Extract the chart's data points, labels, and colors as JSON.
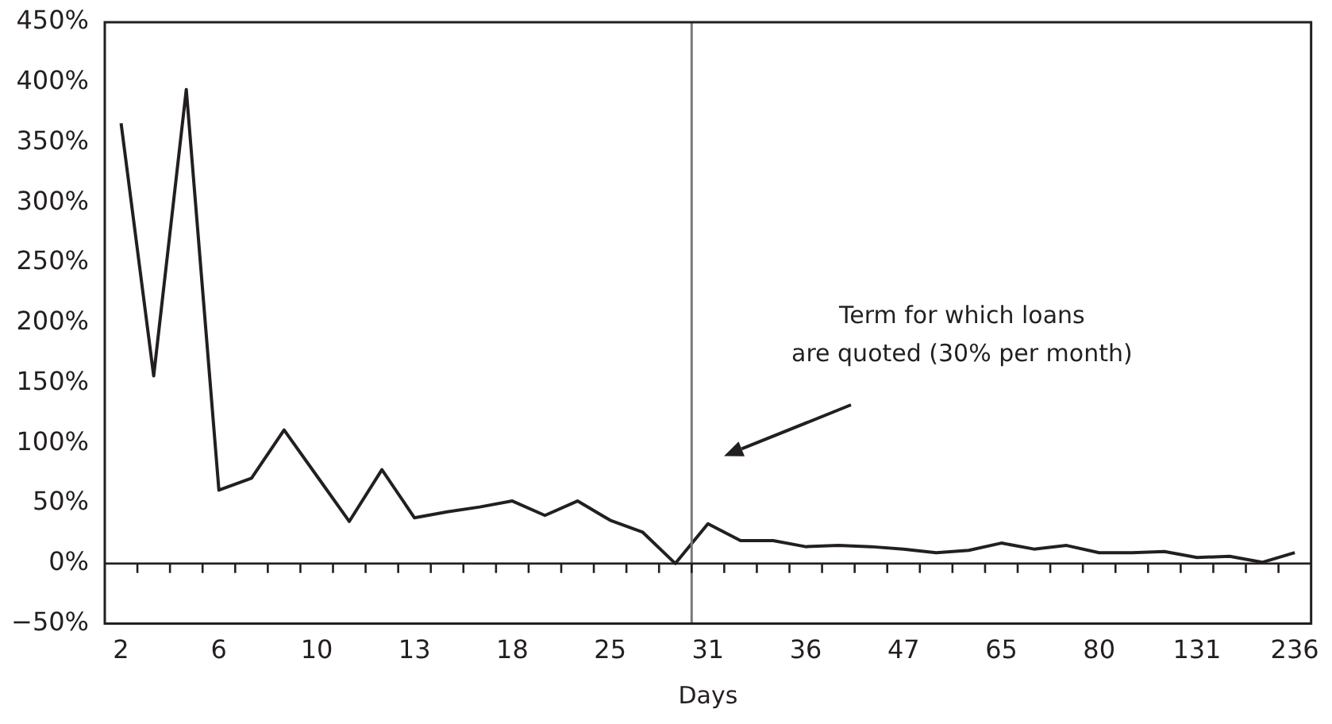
{
  "chart_data": {
    "type": "line",
    "xlabel": "Days",
    "categories": [
      "2",
      null,
      null,
      "6",
      null,
      null,
      "10",
      null,
      null,
      "13",
      null,
      null,
      "18",
      null,
      null,
      "25",
      null,
      null,
      "31",
      null,
      null,
      "36",
      null,
      null,
      "47",
      null,
      null,
      "65",
      null,
      null,
      "80",
      null,
      null,
      "131",
      null,
      null,
      "236"
    ],
    "series": [
      {
        "color": "#231f20",
        "values": [
          366,
          156,
          394,
          61,
          71,
          111,
          73,
          35,
          78,
          38,
          43,
          47,
          52,
          40,
          52,
          36,
          26,
          0,
          33,
          19,
          19,
          14,
          15,
          14,
          12,
          9,
          11,
          17,
          12,
          15,
          9,
          9,
          10,
          5,
          6,
          1,
          9
        ]
      }
    ],
    "ylim": [
      -50,
      450
    ],
    "yticks": [
      {
        "value": -50,
        "label": "−50%"
      },
      {
        "value": 0,
        "label": "0%"
      },
      {
        "value": 50,
        "label": "50%"
      },
      {
        "value": 100,
        "label": "100%"
      },
      {
        "value": 150,
        "label": "150%"
      },
      {
        "value": 200,
        "label": "200%"
      },
      {
        "value": 250,
        "label": "250%"
      },
      {
        "value": 300,
        "label": "300%"
      },
      {
        "value": 350,
        "label": "350%"
      },
      {
        "value": 400,
        "label": "400%"
      },
      {
        "value": 450,
        "label": "450%"
      }
    ],
    "ref_lines": [
      {
        "axis": "x",
        "value": "31",
        "color": "#7a7a7a"
      }
    ],
    "annotations": [
      "Term for which loans\nare quoted (30% per month)"
    ],
    "grid": false,
    "legend": false,
    "marker": "none",
    "line_style": "solid"
  }
}
